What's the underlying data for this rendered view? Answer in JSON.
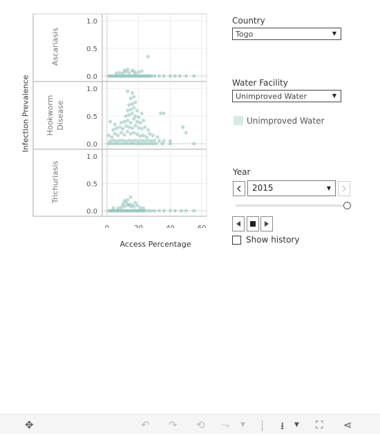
{
  "chart": {
    "y_axis_title": "Infection Prevalence",
    "x_axis_title": "Access  Percentage",
    "panels": [
      {
        "label_lines": [
          "Ascariasis"
        ],
        "y_ticks": [
          "1.0",
          "0.5",
          "0.0"
        ]
      },
      {
        "label_lines": [
          "Hookworm",
          "Disease"
        ],
        "y_ticks": [
          "1.0",
          "0.5",
          "0.0"
        ]
      },
      {
        "label_lines": [
          "Trichuriasis"
        ],
        "y_ticks": [
          "1.0",
          "0.5",
          "0.0"
        ]
      }
    ],
    "x_ticks": [
      "0",
      "20",
      "40",
      "60"
    ],
    "point_color": "#7fbcb2"
  },
  "chart_data": {
    "type": "scatter",
    "xlabel": "Access  Percentage",
    "ylabel": "Infection Prevalence",
    "xlim": [
      -3,
      63
    ],
    "ylim": [
      0,
      1.05
    ],
    "x_ticks": [
      0,
      20,
      40,
      60
    ],
    "y_ticks": [
      0.0,
      0.5,
      1.0
    ],
    "grid": true,
    "series": [
      {
        "name": "Ascariasis",
        "points": [
          [
            1,
            0
          ],
          [
            2,
            0
          ],
          [
            3,
            0
          ],
          [
            4,
            0
          ],
          [
            5,
            0
          ],
          [
            6,
            0
          ],
          [
            7,
            0
          ],
          [
            8,
            0
          ],
          [
            9,
            0
          ],
          [
            10,
            0
          ],
          [
            11,
            0
          ],
          [
            12,
            0
          ],
          [
            13,
            0
          ],
          [
            14,
            0
          ],
          [
            15,
            0
          ],
          [
            16,
            0
          ],
          [
            17,
            0
          ],
          [
            18,
            0
          ],
          [
            19,
            0
          ],
          [
            20,
            0
          ],
          [
            21,
            0
          ],
          [
            22,
            0
          ],
          [
            23,
            0
          ],
          [
            24,
            0
          ],
          [
            25,
            0
          ],
          [
            26,
            0
          ],
          [
            27,
            0
          ],
          [
            28,
            0
          ],
          [
            30,
            0
          ],
          [
            33,
            0
          ],
          [
            36,
            0
          ],
          [
            40,
            0
          ],
          [
            43,
            0
          ],
          [
            46,
            0
          ],
          [
            50,
            0
          ],
          [
            55,
            0
          ],
          [
            6,
            0.05
          ],
          [
            8,
            0.06
          ],
          [
            10,
            0.05
          ],
          [
            12,
            0.08
          ],
          [
            14,
            0.06
          ],
          [
            16,
            0.1
          ],
          [
            18,
            0.05
          ],
          [
            20,
            0.07
          ],
          [
            22,
            0.09
          ],
          [
            13,
            0.12
          ],
          [
            11,
            0.1
          ],
          [
            17,
            0.08
          ],
          [
            26,
            0.35
          ]
        ]
      },
      {
        "name": "Hookworm Disease",
        "points": [
          [
            1,
            0
          ],
          [
            3,
            0
          ],
          [
            5,
            0
          ],
          [
            7,
            0
          ],
          [
            9,
            0
          ],
          [
            11,
            0
          ],
          [
            13,
            0
          ],
          [
            15,
            0
          ],
          [
            17,
            0
          ],
          [
            19,
            0
          ],
          [
            21,
            0
          ],
          [
            23,
            0
          ],
          [
            25,
            0
          ],
          [
            27,
            0
          ],
          [
            29,
            0
          ],
          [
            31,
            0
          ],
          [
            35,
            0
          ],
          [
            40,
            0
          ],
          [
            55,
            0
          ],
          [
            2,
            0.05
          ],
          [
            4,
            0.06
          ],
          [
            6,
            0.05
          ],
          [
            8,
            0.06
          ],
          [
            10,
            0.06
          ],
          [
            12,
            0.05
          ],
          [
            14,
            0.06
          ],
          [
            16,
            0.05
          ],
          [
            18,
            0.06
          ],
          [
            20,
            0.05
          ],
          [
            22,
            0.06
          ],
          [
            24,
            0.05
          ],
          [
            26,
            0.06
          ],
          [
            28,
            0.05
          ],
          [
            30,
            0.06
          ],
          [
            33,
            0.05
          ],
          [
            36,
            0.05
          ],
          [
            1,
            0.15
          ],
          [
            3,
            0.12
          ],
          [
            5,
            0.18
          ],
          [
            7,
            0.15
          ],
          [
            9,
            0.2
          ],
          [
            11,
            0.16
          ],
          [
            13,
            0.22
          ],
          [
            15,
            0.18
          ],
          [
            17,
            0.2
          ],
          [
            19,
            0.17
          ],
          [
            21,
            0.14
          ],
          [
            23,
            0.15
          ],
          [
            25,
            0.12
          ],
          [
            27,
            0.18
          ],
          [
            29,
            0.15
          ],
          [
            32,
            0.12
          ],
          [
            4,
            0.25
          ],
          [
            6,
            0.28
          ],
          [
            8,
            0.3
          ],
          [
            10,
            0.27
          ],
          [
            12,
            0.32
          ],
          [
            14,
            0.3
          ],
          [
            16,
            0.28
          ],
          [
            18,
            0.33
          ],
          [
            20,
            0.29
          ],
          [
            22,
            0.27
          ],
          [
            24,
            0.3
          ],
          [
            26,
            0.25
          ],
          [
            9,
            0.38
          ],
          [
            11,
            0.4
          ],
          [
            13,
            0.42
          ],
          [
            15,
            0.38
          ],
          [
            17,
            0.45
          ],
          [
            19,
            0.4
          ],
          [
            21,
            0.38
          ],
          [
            23,
            0.42
          ],
          [
            12,
            0.5
          ],
          [
            14,
            0.52
          ],
          [
            16,
            0.55
          ],
          [
            18,
            0.5
          ],
          [
            20,
            0.48
          ],
          [
            22,
            0.55
          ],
          [
            13,
            0.6
          ],
          [
            15,
            0.62
          ],
          [
            17,
            0.65
          ],
          [
            19,
            0.6
          ],
          [
            14,
            0.7
          ],
          [
            16,
            0.72
          ],
          [
            18,
            0.75
          ],
          [
            15,
            0.82
          ],
          [
            17,
            0.85
          ],
          [
            16,
            0.92
          ],
          [
            13,
            0.95
          ],
          [
            34,
            0.55
          ],
          [
            36,
            0.55
          ],
          [
            48,
            0.3
          ],
          [
            50,
            0.2
          ],
          [
            40,
            0.05
          ],
          [
            2,
            0.4
          ],
          [
            5,
            0.35
          ]
        ]
      },
      {
        "name": "Trichuriasis",
        "points": [
          [
            1,
            0
          ],
          [
            2,
            0
          ],
          [
            3,
            0
          ],
          [
            4,
            0
          ],
          [
            5,
            0
          ],
          [
            6,
            0
          ],
          [
            7,
            0
          ],
          [
            8,
            0
          ],
          [
            9,
            0
          ],
          [
            10,
            0
          ],
          [
            11,
            0
          ],
          [
            12,
            0
          ],
          [
            13,
            0
          ],
          [
            14,
            0
          ],
          [
            15,
            0
          ],
          [
            16,
            0
          ],
          [
            17,
            0
          ],
          [
            18,
            0
          ],
          [
            19,
            0
          ],
          [
            20,
            0
          ],
          [
            21,
            0
          ],
          [
            22,
            0
          ],
          [
            23,
            0
          ],
          [
            24,
            0
          ],
          [
            26,
            0
          ],
          [
            28,
            0
          ],
          [
            30,
            0
          ],
          [
            33,
            0
          ],
          [
            36,
            0
          ],
          [
            40,
            0
          ],
          [
            43,
            0
          ],
          [
            47,
            0
          ],
          [
            50,
            0
          ],
          [
            55,
            0
          ],
          [
            4,
            0.05
          ],
          [
            7,
            0.05
          ],
          [
            9,
            0.06
          ],
          [
            11,
            0.08
          ],
          [
            13,
            0.1
          ],
          [
            15,
            0.08
          ],
          [
            17,
            0.07
          ],
          [
            19,
            0.1
          ],
          [
            21,
            0.06
          ],
          [
            23,
            0.05
          ],
          [
            10,
            0.12
          ],
          [
            12,
            0.15
          ],
          [
            14,
            0.12
          ],
          [
            16,
            0.11
          ],
          [
            18,
            0.15
          ],
          [
            13,
            0.2
          ],
          [
            11,
            0.18
          ],
          [
            15,
            0.25
          ]
        ]
      }
    ]
  },
  "controls": {
    "country_title": "Country",
    "country_value": "Togo",
    "water_title": "Water Facility",
    "water_value": "Unimproved Water",
    "legend_label": "Unimproved Water",
    "legend_color": "#d6e9e6",
    "year_title": "Year",
    "year_value": "2015",
    "year_slider_position": 1.0,
    "show_history_label": "Show history",
    "show_history_checked": false
  },
  "toolbar": {
    "icons": [
      "move-icon",
      "undo-icon",
      "redo-icon",
      "revert-icon",
      "refresh-icon",
      "download-icon",
      "fullscreen-icon",
      "share-icon"
    ]
  }
}
